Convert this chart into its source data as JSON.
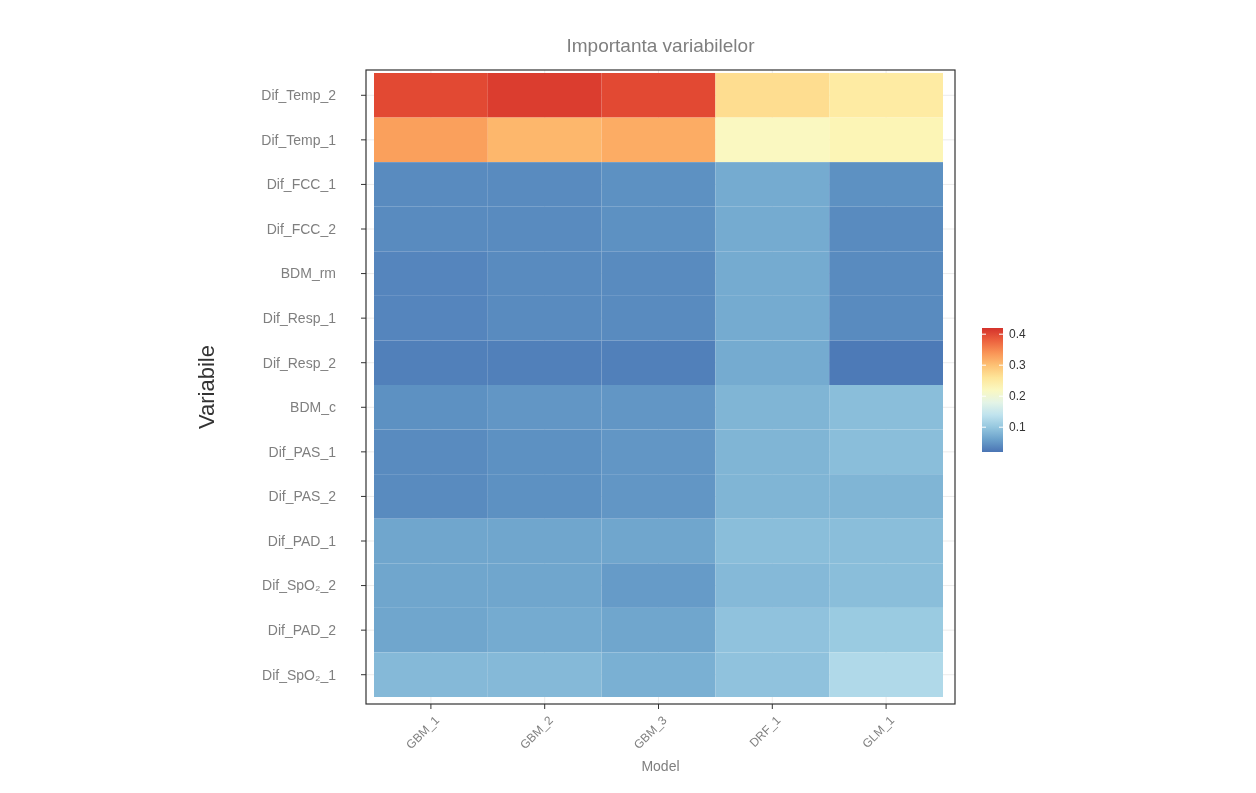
{
  "chart_data": {
    "type": "heatmap",
    "title": "Importanta variabilelor",
    "xlabel": "Model",
    "ylabel": "Variabile",
    "categories": [
      "GBM_1",
      "GBM_2",
      "GBM_3",
      "DRF_1",
      "GLM_1"
    ],
    "y_categories": [
      "Dif_Temp_2",
      "Dif_Temp_1",
      "Dif_FCC_1",
      "Dif_FCC_2",
      "BDM_rm",
      "Dif_Resp_1",
      "Dif_Resp_2",
      "BDM_c",
      "Dif_PAS_1",
      "Dif_PAS_2",
      "Dif_PAD_1",
      "Dif_SpO₂_2",
      "Dif_PAD_2",
      "Dif_SpO₂_1"
    ],
    "cells": [
      [
        0.4,
        0.41,
        0.4,
        0.27,
        0.25
      ],
      [
        0.33,
        0.31,
        0.32,
        0.22,
        0.23
      ],
      [
        0.04,
        0.04,
        0.045,
        0.07,
        0.045
      ],
      [
        0.04,
        0.04,
        0.045,
        0.07,
        0.04
      ],
      [
        0.035,
        0.04,
        0.04,
        0.07,
        0.04
      ],
      [
        0.035,
        0.04,
        0.04,
        0.07,
        0.04
      ],
      [
        0.03,
        0.03,
        0.03,
        0.07,
        0.025
      ],
      [
        0.045,
        0.05,
        0.05,
        0.08,
        0.09
      ],
      [
        0.04,
        0.045,
        0.05,
        0.08,
        0.09
      ],
      [
        0.04,
        0.045,
        0.05,
        0.08,
        0.08
      ],
      [
        0.065,
        0.065,
        0.065,
        0.09,
        0.09
      ],
      [
        0.065,
        0.065,
        0.055,
        0.085,
        0.09
      ],
      [
        0.065,
        0.07,
        0.065,
        0.095,
        0.105
      ],
      [
        0.085,
        0.085,
        0.075,
        0.095,
        0.125
      ]
    ],
    "clim": [
      0.02,
      0.42
    ],
    "cticks": [
      0.1,
      0.2,
      0.3,
      0.4
    ],
    "grid": true
  }
}
